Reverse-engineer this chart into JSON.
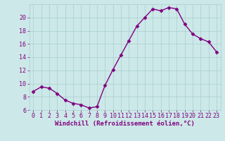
{
  "x": [
    0,
    1,
    2,
    3,
    4,
    5,
    6,
    7,
    8,
    9,
    10,
    11,
    12,
    13,
    14,
    15,
    16,
    17,
    18,
    19,
    20,
    21,
    22,
    23
  ],
  "y": [
    8.8,
    9.5,
    9.3,
    8.5,
    7.5,
    7.0,
    6.8,
    6.3,
    6.5,
    9.7,
    12.1,
    14.3,
    16.5,
    18.7,
    20.0,
    21.3,
    21.0,
    21.5,
    21.3,
    19.0,
    17.5,
    16.8,
    16.3,
    14.8
  ],
  "line_color": "#800080",
  "marker": "D",
  "markersize": 2.5,
  "linewidth": 1.0,
  "xlabel": "Windchill (Refroidissement éolien,°C)",
  "xlabel_fontsize": 6.5,
  "ylim": [
    6,
    22
  ],
  "xlim": [
    -0.5,
    23.5
  ],
  "yticks": [
    6,
    8,
    10,
    12,
    14,
    16,
    18,
    20
  ],
  "xticks": [
    0,
    1,
    2,
    3,
    4,
    5,
    6,
    7,
    8,
    9,
    10,
    11,
    12,
    13,
    14,
    15,
    16,
    17,
    18,
    19,
    20,
    21,
    22,
    23
  ],
  "grid_color": "#aacece",
  "bg_color": "#cce8e8",
  "tick_fontsize": 6.0,
  "tick_color": "#800080",
  "font_family": "monospace"
}
